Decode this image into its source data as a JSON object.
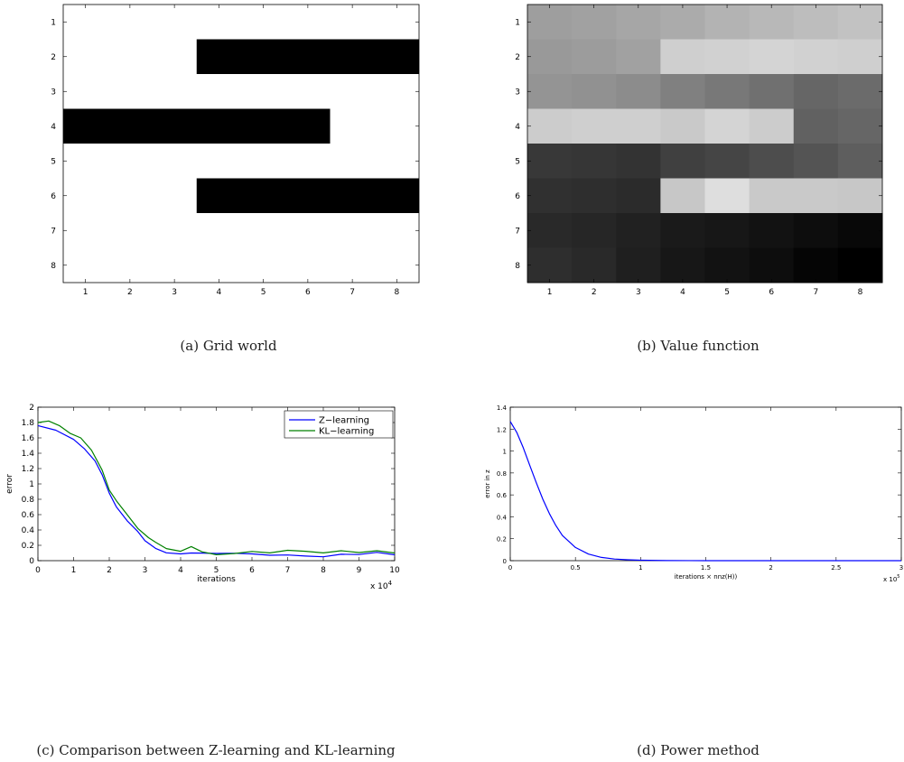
{
  "chart_data": [
    {
      "id": "a",
      "type": "heatmap",
      "caption": "(a)  Grid world",
      "x_ticks": [
        "1",
        "2",
        "3",
        "4",
        "5",
        "6",
        "7",
        "8"
      ],
      "y_ticks": [
        "1",
        "2",
        "3",
        "4",
        "5",
        "6",
        "7",
        "8"
      ],
      "walls": [
        {
          "row": 2,
          "col_start": 4,
          "col_end": 8
        },
        {
          "row": 4,
          "col_start": 1,
          "col_end": 6
        },
        {
          "row": 6,
          "col_start": 4,
          "col_end": 8
        }
      ]
    },
    {
      "id": "b",
      "type": "heatmap",
      "caption": "(b)  Value function",
      "x_ticks": [
        "1",
        "2",
        "3",
        "4",
        "5",
        "6",
        "7",
        "8"
      ],
      "y_ticks": [
        "1",
        "2",
        "3",
        "4",
        "5",
        "6",
        "7",
        "8"
      ],
      "gray_levels": [
        [
          0.62,
          0.63,
          0.65,
          0.67,
          0.7,
          0.72,
          0.74,
          0.76
        ],
        [
          0.6,
          0.61,
          0.63,
          0.81,
          0.82,
          0.83,
          0.82,
          0.81
        ],
        [
          0.58,
          0.57,
          0.55,
          0.5,
          0.47,
          0.44,
          0.4,
          0.42
        ],
        [
          0.8,
          0.81,
          0.81,
          0.79,
          0.83,
          0.8,
          0.38,
          0.4
        ],
        [
          0.22,
          0.21,
          0.2,
          0.25,
          0.27,
          0.3,
          0.33,
          0.37
        ],
        [
          0.19,
          0.18,
          0.17,
          0.78,
          0.87,
          0.79,
          0.79,
          0.78
        ],
        [
          0.16,
          0.15,
          0.13,
          0.1,
          0.09,
          0.07,
          0.05,
          0.03
        ],
        [
          0.18,
          0.16,
          0.12,
          0.09,
          0.07,
          0.05,
          0.02,
          0.0
        ]
      ]
    },
    {
      "id": "c",
      "type": "line",
      "caption": "(c)  Comparison between Z-learning and KL-learning",
      "xlabel": "iterations",
      "ylabel": "error",
      "x_multiplier": "x 10",
      "x_multiplier_exp": "4",
      "xlim": [
        0,
        10
      ],
      "ylim": [
        0,
        2
      ],
      "x_ticks": [
        "0",
        "1",
        "2",
        "3",
        "4",
        "5",
        "6",
        "7",
        "8",
        "9",
        "10"
      ],
      "y_ticks": [
        "0",
        "0.2",
        "0.4",
        "0.6",
        "0.8",
        "1",
        "1.2",
        "1.4",
        "1.6",
        "1.8",
        "2"
      ],
      "legend_position": "top-right",
      "series": [
        {
          "name": "Z−learning",
          "color": "#0000ff",
          "x": [
            0,
            0.5,
            1.0,
            1.3,
            1.6,
            1.8,
            2.0,
            2.2,
            2.5,
            2.8,
            3.0,
            3.3,
            3.6,
            4.0,
            4.3,
            4.6,
            5.0,
            5.5,
            6.0,
            6.5,
            7.0,
            7.5,
            8.0,
            8.5,
            9.0,
            9.5,
            10.0
          ],
          "y": [
            1.76,
            1.7,
            1.58,
            1.46,
            1.3,
            1.12,
            0.88,
            0.7,
            0.52,
            0.38,
            0.26,
            0.16,
            0.09,
            0.07,
            0.08,
            0.08,
            0.08,
            0.09,
            0.09,
            0.08,
            0.09,
            0.08,
            0.07,
            0.1,
            0.09,
            0.11,
            0.07
          ]
        },
        {
          "name": "KL−learning",
          "color": "#008000",
          "x": [
            0,
            0.3,
            0.6,
            0.9,
            1.2,
            1.5,
            1.8,
            2.0,
            2.2,
            2.5,
            2.8,
            3.1,
            3.3,
            3.6,
            4.0,
            4.3,
            4.6,
            5.0,
            5.5,
            6.0,
            6.5,
            7.0,
            7.5,
            8.0,
            8.5,
            9.0,
            9.5,
            10.0
          ],
          "y": [
            1.8,
            1.82,
            1.76,
            1.66,
            1.6,
            1.44,
            1.18,
            0.92,
            0.78,
            0.6,
            0.42,
            0.3,
            0.24,
            0.14,
            0.11,
            0.18,
            0.12,
            0.09,
            0.11,
            0.14,
            0.12,
            0.15,
            0.13,
            0.1,
            0.12,
            0.09,
            0.11,
            0.08
          ]
        }
      ]
    },
    {
      "id": "d",
      "type": "line",
      "caption": "(d)  Power method",
      "xlabel": "iterations × nnz(H))",
      "ylabel": "error in z",
      "x_multiplier": "x 10",
      "x_multiplier_exp": "5",
      "xlim": [
        0,
        3
      ],
      "ylim": [
        0,
        1.4
      ],
      "x_ticks": [
        "0",
        "0.5",
        "1",
        "1.5",
        "2",
        "2.5",
        "3"
      ],
      "y_ticks": [
        "0",
        "0.2",
        "0.4",
        "0.6",
        "0.8",
        "1",
        "1.2",
        "1.4"
      ],
      "series": [
        {
          "color": "#0000ff",
          "x": [
            0,
            0.05,
            0.1,
            0.15,
            0.2,
            0.25,
            0.3,
            0.35,
            0.4,
            0.5,
            0.6,
            0.7,
            0.8,
            0.9,
            1.0,
            1.2,
            1.5,
            2.0,
            2.5,
            3.0
          ],
          "y": [
            1.27,
            1.17,
            1.03,
            0.87,
            0.71,
            0.56,
            0.43,
            0.32,
            0.23,
            0.12,
            0.06,
            0.03,
            0.015,
            0.008,
            0.004,
            0.001,
            0.0,
            0.0,
            0.0,
            0.0
          ]
        }
      ]
    }
  ]
}
